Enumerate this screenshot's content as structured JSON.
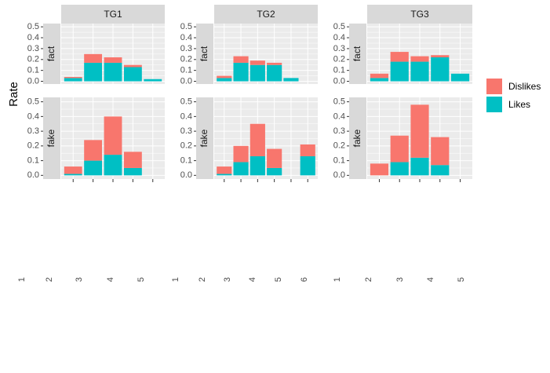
{
  "chart_data": {
    "type": "bar",
    "ylabel": "Rate",
    "columns": [
      "TG1",
      "TG2",
      "TG3"
    ],
    "rows": [
      "fact",
      "fake"
    ],
    "ylim": [
      -0.025,
      0.53
    ],
    "yticks": [
      {
        "value": 0,
        "label": "0.0"
      },
      0.1,
      0.2,
      0.3,
      0.4,
      0.5
    ],
    "grid": true,
    "legend_position": "right",
    "legend": [
      {
        "name": "Dislikes",
        "color": "#F8766D"
      },
      {
        "name": "Likes",
        "color": "#00BFC4"
      }
    ],
    "facets": [
      {
        "categories": [
          "1",
          "2",
          "3",
          "4",
          "5"
        ],
        "panels": [
          {
            "series": [
              {
                "values": [
                  0.01,
                  0.08,
                  0.05,
                  0.02,
                  null
                ]
              },
              {
                "values": [
                  0.03,
                  0.17,
                  0.17,
                  0.13,
                  0.02
                ]
              }
            ]
          },
          {
            "series": [
              {
                "values": [
                  0.05,
                  0.14,
                  0.26,
                  0.11,
                  null
                ]
              },
              {
                "values": [
                  0.01,
                  0.1,
                  0.14,
                  0.05,
                  null
                ]
              }
            ]
          }
        ]
      },
      {
        "categories": [
          "1",
          "2",
          "3",
          "4",
          "5",
          "6"
        ],
        "panels": [
          {
            "series": [
              {
                "values": [
                  0.02,
                  0.06,
                  0.04,
                  0.02,
                  null,
                  null
                ]
              },
              {
                "values": [
                  0.03,
                  0.17,
                  0.15,
                  0.15,
                  0.03,
                  null
                ]
              }
            ]
          },
          {
            "series": [
              {
                "values": [
                  0.05,
                  0.11,
                  0.22,
                  0.13,
                  null,
                  0.08
                ]
              },
              {
                "values": [
                  0.01,
                  0.09,
                  0.13,
                  0.05,
                  null,
                  0.13
                ]
              }
            ]
          }
        ]
      },
      {
        "categories": [
          "1",
          "2",
          "3",
          "4",
          "5"
        ],
        "panels": [
          {
            "series": [
              {
                "values": [
                  0.04,
                  0.09,
                  0.05,
                  0.02,
                  null
                ]
              },
              {
                "values": [
                  0.03,
                  0.18,
                  0.18,
                  0.22,
                  0.07
                ]
              }
            ]
          },
          {
            "series": [
              {
                "values": [
                  0.08,
                  0.18,
                  0.36,
                  0.19,
                  null
                ]
              },
              {
                "values": [
                  null,
                  0.09,
                  0.12,
                  0.07,
                  null
                ]
              }
            ]
          }
        ]
      }
    ]
  }
}
